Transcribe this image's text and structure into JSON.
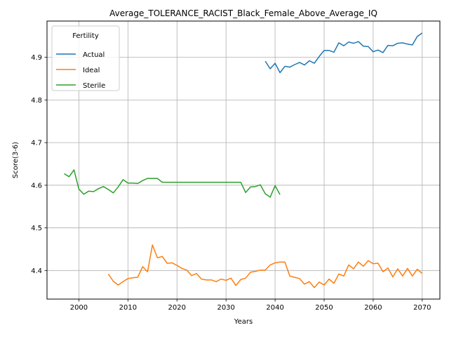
{
  "chart_data": {
    "type": "line",
    "title": "Average_TOLERANCE_RACIST_Black_Female_Above_Average_IQ",
    "xlabel": "Years",
    "ylabel": "Score(3-6)",
    "xlim": [
      1993.5,
      2073.6
    ],
    "ylim": [
      4.333,
      4.985
    ],
    "xticks": [
      2000,
      2010,
      2020,
      2030,
      2040,
      2050,
      2060,
      2070
    ],
    "yticks": [
      4.4,
      4.5,
      4.6,
      4.7,
      4.8,
      4.9
    ],
    "grid": true,
    "legend": {
      "title": "Fertility",
      "position": "top-left"
    },
    "series": [
      {
        "name": "Actual",
        "color": "#1f77b4",
        "x": [
          2038,
          2039,
          2040,
          2041,
          2042,
          2043,
          2044,
          2045,
          2046,
          2047,
          2048,
          2049,
          2050,
          2051,
          2052,
          2053,
          2054,
          2055,
          2056,
          2057,
          2058,
          2059,
          2060,
          2061,
          2062,
          2063,
          2064,
          2065,
          2066,
          2067,
          2068,
          2069,
          2070
        ],
        "y": [
          4.891,
          4.873,
          4.886,
          4.864,
          4.879,
          4.877,
          4.883,
          4.888,
          4.882,
          4.892,
          4.886,
          4.902,
          4.916,
          4.916,
          4.912,
          4.934,
          4.927,
          4.936,
          4.933,
          4.937,
          4.926,
          4.925,
          4.913,
          4.917,
          4.911,
          4.928,
          4.927,
          4.933,
          4.934,
          4.931,
          4.929,
          4.949,
          4.957
        ]
      },
      {
        "name": "Ideal",
        "color": "#ff7f0e",
        "x": [
          2006,
          2007,
          2008,
          2009,
          2010,
          2011,
          2012,
          2013,
          2014,
          2015,
          2016,
          2017,
          2018,
          2019,
          2020,
          2021,
          2022,
          2023,
          2024,
          2025,
          2026,
          2027,
          2028,
          2029,
          2030,
          2031,
          2032,
          2033,
          2034,
          2035,
          2036,
          2037,
          2038,
          2039,
          2040,
          2041,
          2042,
          2043,
          2044,
          2045,
          2046,
          2047,
          2048,
          2049,
          2050,
          2051,
          2052,
          2053,
          2054,
          2055,
          2056,
          2057,
          2058,
          2059,
          2060,
          2061,
          2062,
          2063,
          2064,
          2065,
          2066,
          2067,
          2068,
          2069,
          2070
        ],
        "y": [
          4.392,
          4.375,
          4.366,
          4.374,
          4.381,
          4.383,
          4.384,
          4.409,
          4.397,
          4.46,
          4.43,
          4.433,
          4.417,
          4.418,
          4.412,
          4.405,
          4.401,
          4.388,
          4.393,
          4.38,
          4.378,
          4.378,
          4.374,
          4.38,
          4.377,
          4.382,
          4.365,
          4.379,
          4.382,
          4.396,
          4.398,
          4.401,
          4.401,
          4.413,
          4.418,
          4.42,
          4.42,
          4.387,
          4.384,
          4.381,
          4.368,
          4.374,
          4.36,
          4.373,
          4.366,
          4.38,
          4.37,
          4.392,
          4.387,
          4.413,
          4.404,
          4.42,
          4.41,
          4.423,
          4.416,
          4.417,
          4.397,
          4.406,
          4.385,
          4.404,
          4.387,
          4.405,
          4.387,
          4.403,
          4.393
        ]
      },
      {
        "name": "Sterile",
        "color": "#2ca02c",
        "x": [
          1997,
          1998,
          1999,
          2000,
          2001,
          2002,
          2003,
          2004,
          2005,
          2006,
          2007,
          2008,
          2009,
          2010,
          2011,
          2012,
          2013,
          2014,
          2015,
          2016,
          2017,
          2018,
          2019,
          2020,
          2021,
          2022,
          2023,
          2024,
          2025,
          2026,
          2027,
          2028,
          2029,
          2030,
          2031,
          2032,
          2033,
          2034,
          2035,
          2036,
          2037,
          2038,
          2039,
          2040,
          2041
        ],
        "y": [
          4.627,
          4.62,
          4.636,
          4.591,
          4.579,
          4.586,
          4.585,
          4.592,
          4.597,
          4.59,
          4.582,
          4.596,
          4.613,
          4.605,
          4.605,
          4.604,
          4.611,
          4.616,
          4.616,
          4.616,
          4.607,
          4.607,
          4.607,
          4.607,
          4.607,
          4.607,
          4.607,
          4.607,
          4.607,
          4.607,
          4.607,
          4.607,
          4.607,
          4.607,
          4.607,
          4.607,
          4.607,
          4.583,
          4.596,
          4.597,
          4.601,
          4.58,
          4.572,
          4.599,
          4.578
        ]
      }
    ]
  }
}
